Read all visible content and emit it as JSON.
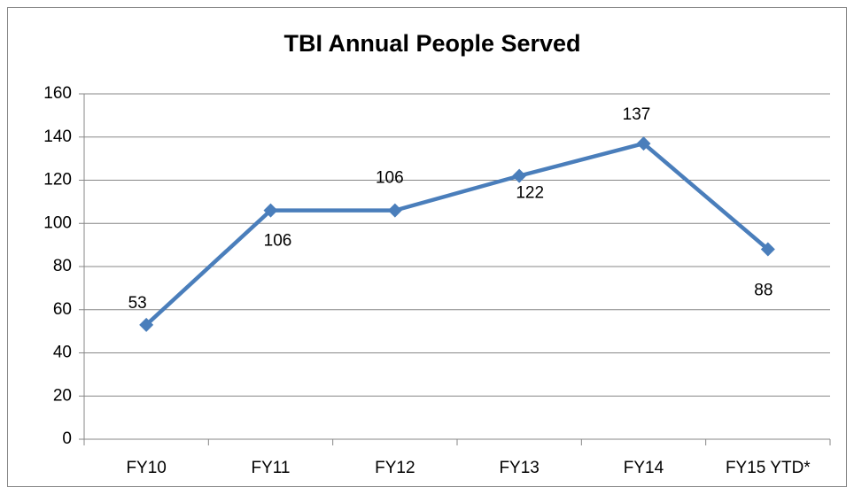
{
  "chart_data": {
    "type": "line",
    "title": "TBI Annual People Served",
    "categories": [
      "FY10",
      "FY11",
      "FY12",
      "FY13",
      "FY14",
      "FY15 YTD*"
    ],
    "series": [
      {
        "name": "People Served",
        "color": "#4a7ebb",
        "values": [
          53,
          106,
          106,
          122,
          137,
          88
        ]
      }
    ],
    "ylim": [
      0,
      160
    ],
    "yticks": [
      0,
      20,
      40,
      60,
      80,
      100,
      120,
      140,
      160
    ],
    "grid": true
  }
}
